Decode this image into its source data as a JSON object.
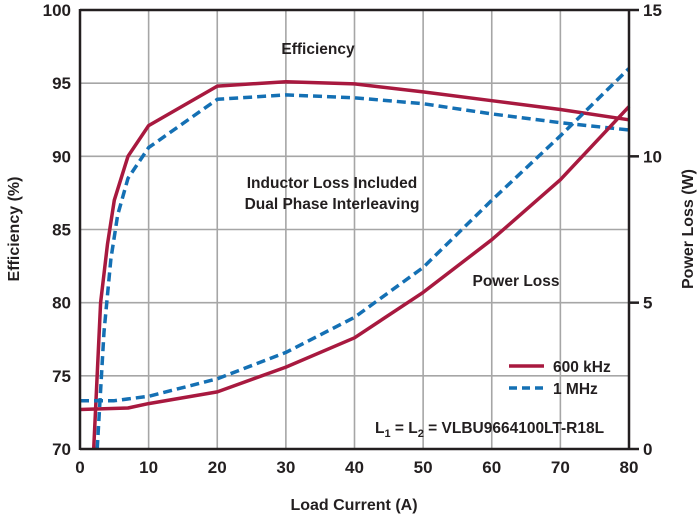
{
  "chart_data": {
    "type": "line",
    "title": "",
    "xlabel": "Load Current (A)",
    "ylabel": "Efficiency (%)",
    "y2label": "Power Loss (W)",
    "xlim": [
      0,
      80
    ],
    "ylim": [
      70,
      100
    ],
    "y2lim": [
      0,
      15
    ],
    "xticks": [
      "0",
      "10",
      "20",
      "30",
      "40",
      "50",
      "60",
      "70",
      "80"
    ],
    "yticks": [
      "70",
      "75",
      "80",
      "85",
      "90",
      "95",
      "100"
    ],
    "y2ticks": [
      "0",
      "5",
      "10",
      "15"
    ],
    "grid": true,
    "legend_position": "bottom-right",
    "colors": {
      "600kHz": "#A8193F",
      "1MHz": "#1470B4",
      "grid": "#A6A6A6",
      "axis": "#231f20"
    },
    "annotations": {
      "efficiency": "Efficiency",
      "inductor_line1": "Inductor Loss Included",
      "inductor_line2": "Dual Phase Interleaving",
      "power_loss": "Power Loss",
      "inductor_part_prefix_L": "L",
      "inductor_part_sub1": "1",
      "inductor_part_eq": " = L",
      "inductor_part_sub2": "2",
      "inductor_part_value": " = VLBU9664100LT-R18L"
    },
    "series": [
      {
        "name": "600 kHz",
        "metric": "efficiency",
        "axis": "left",
        "style": "solid",
        "x": [
          2,
          3,
          4,
          5,
          7,
          10,
          20,
          30,
          40,
          50,
          60,
          70,
          80
        ],
        "y": [
          70,
          80,
          84,
          87,
          90,
          92.1,
          94.8,
          95.1,
          94.95,
          94.4,
          93.8,
          93.2,
          92.5
        ]
      },
      {
        "name": "1 MHz",
        "metric": "efficiency",
        "axis": "left",
        "style": "dashed",
        "x": [
          2.5,
          3.5,
          4.5,
          5.5,
          7,
          10,
          20,
          30,
          40,
          50,
          60,
          70,
          80
        ],
        "y": [
          70,
          78,
          83,
          86,
          88.5,
          90.6,
          93.9,
          94.2,
          94.0,
          93.6,
          92.9,
          92.3,
          91.8
        ]
      },
      {
        "name": "600 kHz",
        "metric": "power_loss",
        "axis": "right",
        "style": "solid",
        "x": [
          0,
          7,
          10,
          20,
          30,
          40,
          50,
          60,
          70,
          80
        ],
        "y": [
          1.35,
          1.4,
          1.55,
          1.95,
          2.8,
          3.8,
          5.35,
          7.15,
          9.2,
          11.7
        ]
      },
      {
        "name": "1 MHz",
        "metric": "power_loss",
        "axis": "right",
        "style": "dashed",
        "x": [
          0,
          5,
          10,
          20,
          30,
          40,
          50,
          60,
          70,
          80
        ],
        "y": [
          1.65,
          1.65,
          1.8,
          2.4,
          3.3,
          4.5,
          6.2,
          8.5,
          10.7,
          13.0
        ]
      }
    ],
    "legend": [
      {
        "label": "600 kHz",
        "style": "solid"
      },
      {
        "label": "1 MHz",
        "style": "dashed"
      }
    ]
  }
}
